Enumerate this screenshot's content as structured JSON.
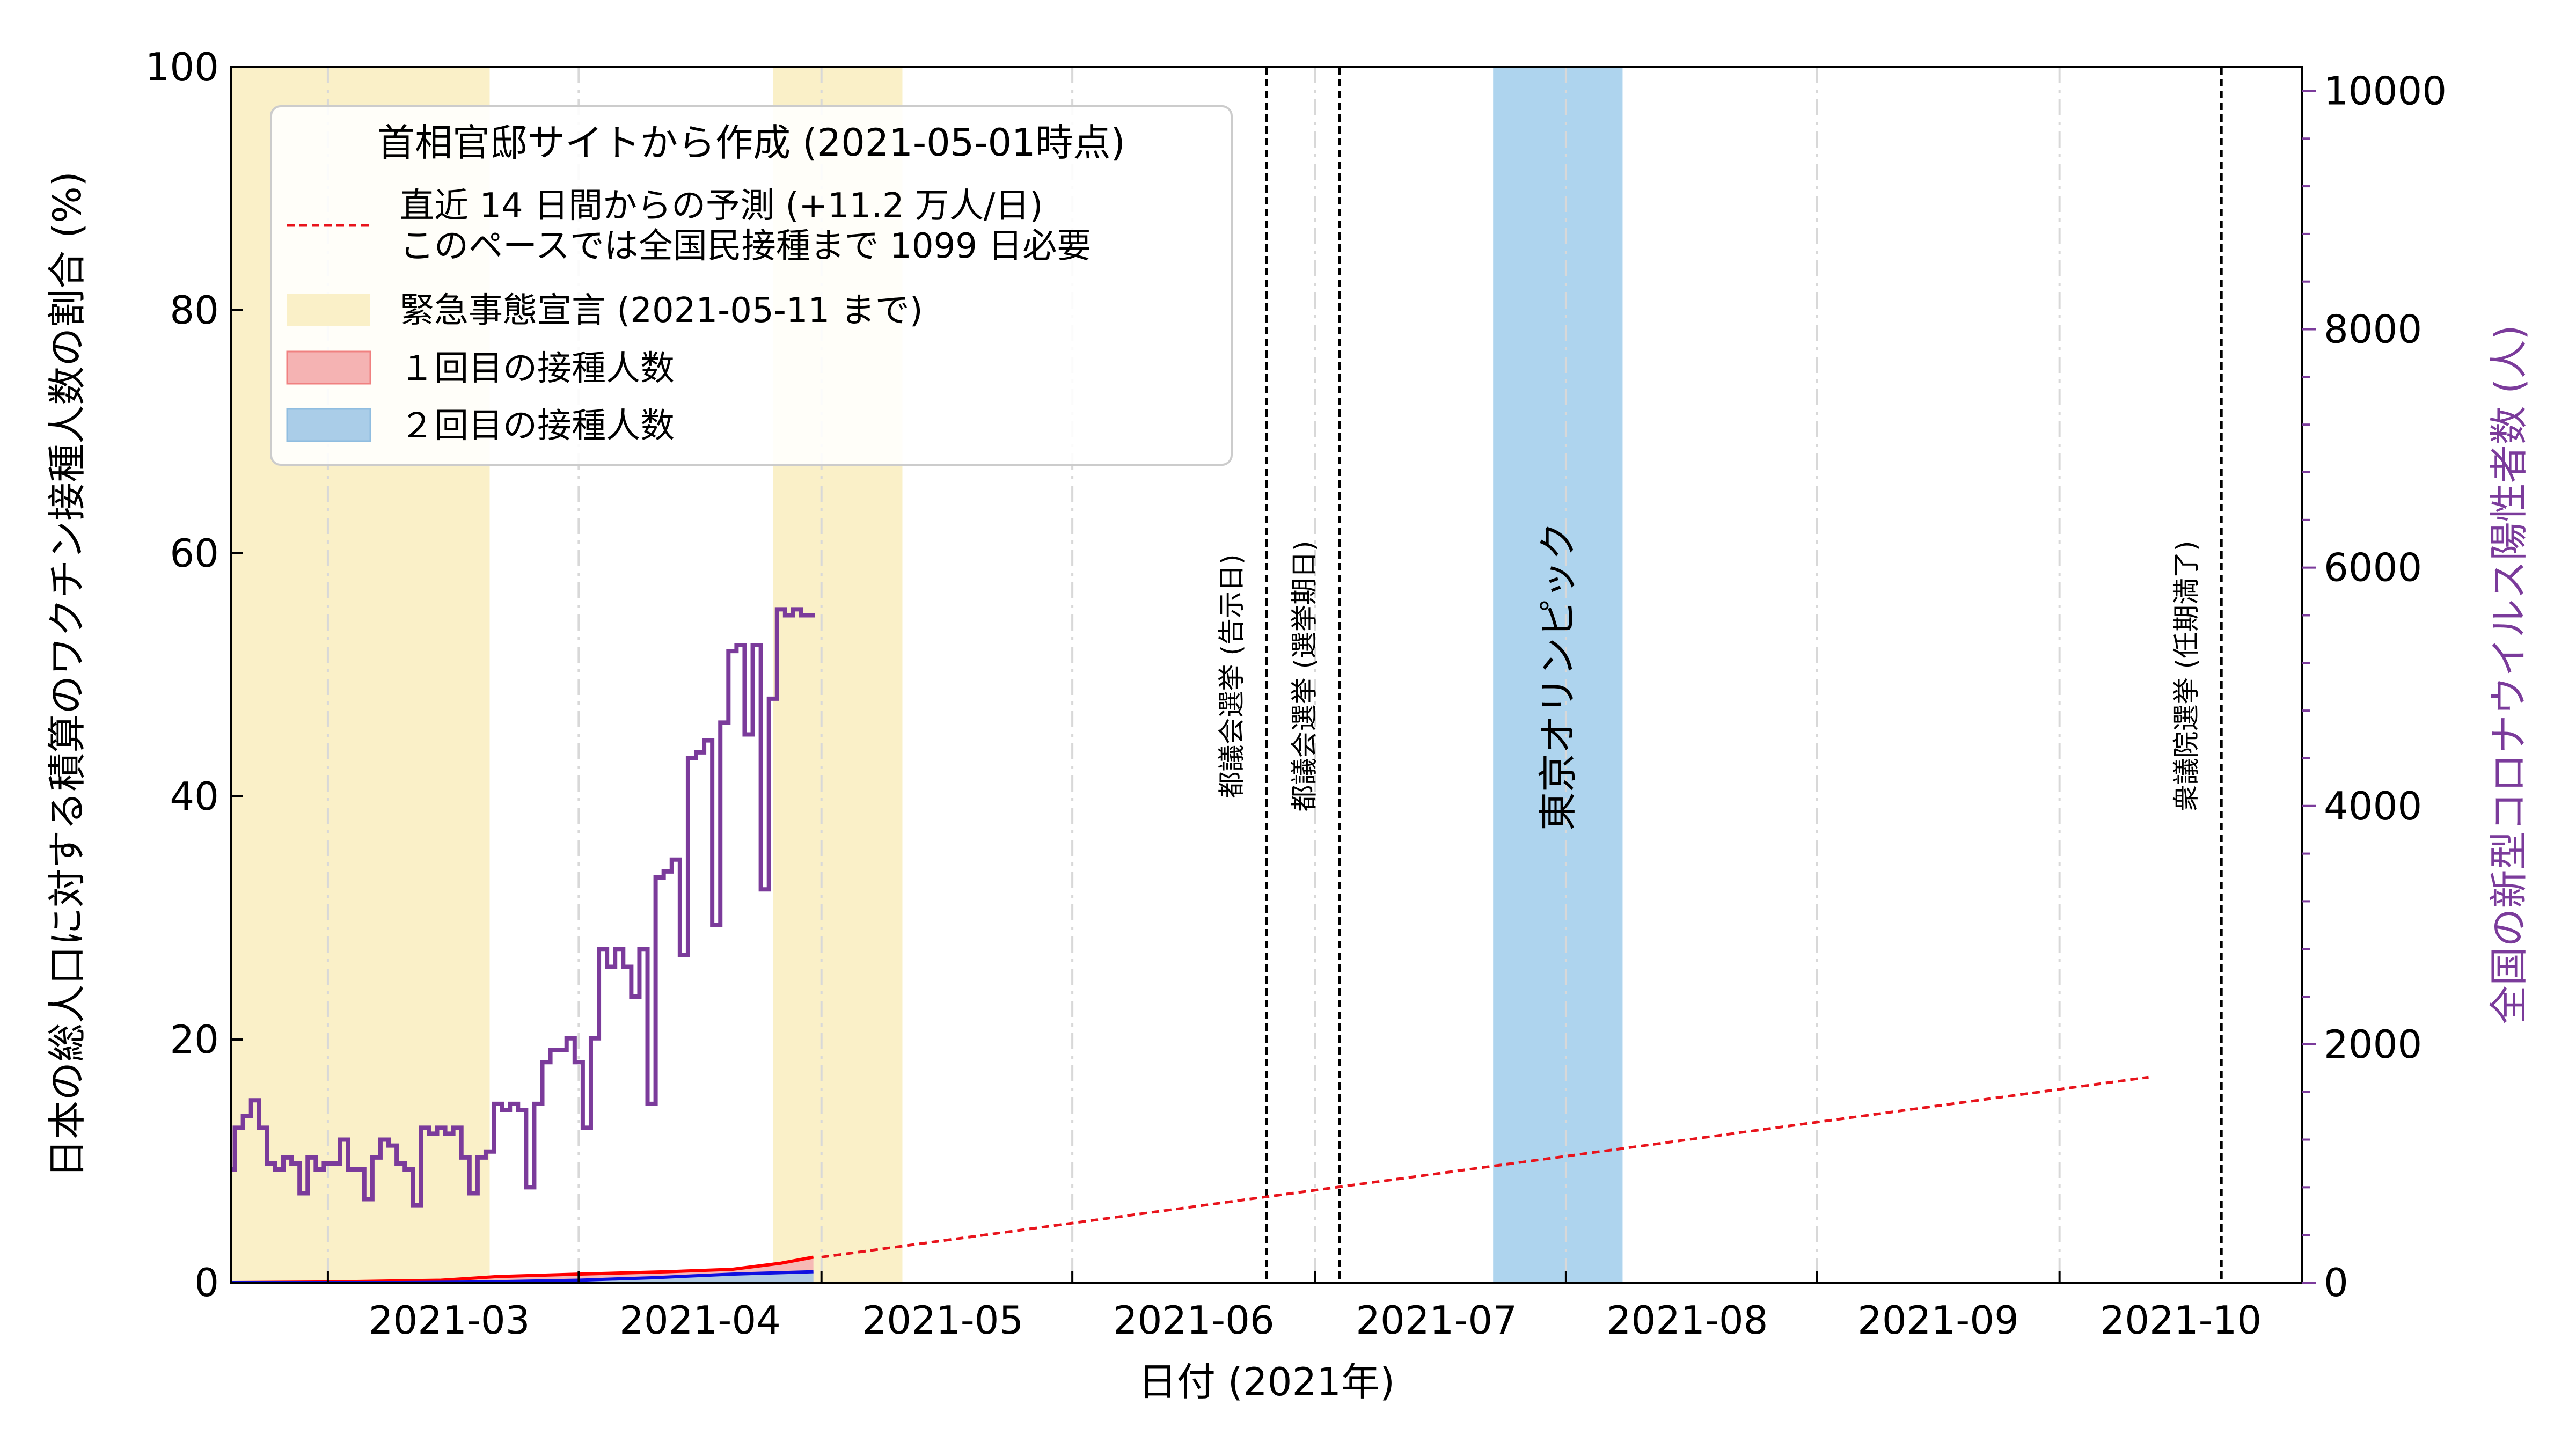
{
  "chart_data": {
    "type": "line",
    "title": "",
    "xlabel": "日付 (2021年)",
    "ylabel_left": "日本の総人口に対する積算のワクチン接種人数の割合 (%)",
    "ylabel_right": "全国の新型コロナウイルス陽性者数 (人)",
    "x_range": [
      "2021-02-17",
      "2021-10-31"
    ],
    "ylim_left": [
      0,
      100
    ],
    "ylim_right": [
      0,
      10200
    ],
    "x_ticks": [
      "2021-03",
      "2021-04",
      "2021-05",
      "2021-06",
      "2021-07",
      "2021-08",
      "2021-09",
      "2021-10"
    ],
    "x_tick_dates": [
      "2021-03-01",
      "2021-04-01",
      "2021-05-01",
      "2021-06-01",
      "2021-07-01",
      "2021-08-01",
      "2021-09-01",
      "2021-10-01"
    ],
    "y_ticks_left": [
      "0",
      "20",
      "40",
      "60",
      "80",
      "100"
    ],
    "y_ticks_right": [
      "0",
      "2000",
      "4000",
      "6000",
      "8000",
      "10000"
    ],
    "grid": "vertical dash-dot at month starts",
    "colors": {
      "emergency": "#faf0c8",
      "olympics": "#aed4ee",
      "forecast": "#e8141c",
      "dose1_line": "#ff0000",
      "dose1_fill": "#f5b3b3",
      "dose2_line": "#1010e0",
      "dose2_fill": "#aacde8",
      "cases": "#7b3b9b"
    },
    "shaded_regions": [
      {
        "label": "緊急事態宣言 (2021-05-11 まで)",
        "start": "2021-02-17",
        "end": "2021-03-21",
        "color": "#faf0c8"
      },
      {
        "label": "緊急事態宣言 (2021-05-11 まで)",
        "start": "2021-04-25",
        "end": "2021-05-11",
        "color": "#faf0c8"
      },
      {
        "label": "東京オリンピック",
        "start": "2021-07-23",
        "end": "2021-08-08",
        "color": "#aed4ee"
      }
    ],
    "events": [
      {
        "label": "都議会選挙 (告示日)",
        "date": "2021-06-25"
      },
      {
        "label": "都議会選挙 (選挙期日)",
        "date": "2021-07-04"
      },
      {
        "label": "衆議院選挙 (任期満了)",
        "date": "2021-10-21"
      }
    ],
    "olympics_label": "東京オリンピック",
    "forecast": {
      "name": "直近 14 日間からの予測 (+11.2 万人/日)",
      "note": "このペースでは全国民接種まで 1099 日必要",
      "x": [
        "2021-05-01",
        "2021-10-12"
      ],
      "y": [
        2.1,
        16.9
      ]
    },
    "series": [
      {
        "name": "１回目の接種人数",
        "axis": "left",
        "x": [
          "2021-02-17",
          "2021-03-01",
          "2021-03-15",
          "2021-03-22",
          "2021-04-01",
          "2021-04-12",
          "2021-04-20",
          "2021-04-26",
          "2021-04-30"
        ],
        "y": [
          0.0,
          0.05,
          0.2,
          0.5,
          0.7,
          0.9,
          1.1,
          1.6,
          2.1
        ]
      },
      {
        "name": "２回目の接種人数",
        "axis": "left",
        "x": [
          "2021-02-17",
          "2021-03-10",
          "2021-03-20",
          "2021-04-01",
          "2021-04-10",
          "2021-04-20",
          "2021-04-30"
        ],
        "y": [
          0.0,
          0.0,
          0.05,
          0.2,
          0.4,
          0.7,
          0.9
        ]
      },
      {
        "name": "全国の新型コロナウイルス陽性者数",
        "axis": "right",
        "x": [
          "2021-02-17",
          "2021-02-18",
          "2021-02-19",
          "2021-02-20",
          "2021-02-21",
          "2021-02-22",
          "2021-02-23",
          "2021-02-24",
          "2021-02-25",
          "2021-02-26",
          "2021-02-27",
          "2021-02-28",
          "2021-03-01",
          "2021-03-02",
          "2021-03-03",
          "2021-03-04",
          "2021-03-05",
          "2021-03-06",
          "2021-03-07",
          "2021-03-08",
          "2021-03-09",
          "2021-03-10",
          "2021-03-11",
          "2021-03-12",
          "2021-03-13",
          "2021-03-14",
          "2021-03-15",
          "2021-03-16",
          "2021-03-17",
          "2021-03-18",
          "2021-03-19",
          "2021-03-20",
          "2021-03-21",
          "2021-03-22",
          "2021-03-23",
          "2021-03-24",
          "2021-03-25",
          "2021-03-26",
          "2021-03-27",
          "2021-03-28",
          "2021-03-29",
          "2021-03-30",
          "2021-03-31",
          "2021-04-01",
          "2021-04-02",
          "2021-04-03",
          "2021-04-04",
          "2021-04-05",
          "2021-04-06",
          "2021-04-07",
          "2021-04-08",
          "2021-04-09",
          "2021-04-10",
          "2021-04-11",
          "2021-04-12",
          "2021-04-13",
          "2021-04-14",
          "2021-04-15",
          "2021-04-16",
          "2021-04-17",
          "2021-04-18",
          "2021-04-19",
          "2021-04-20",
          "2021-04-21",
          "2021-04-22",
          "2021-04-23",
          "2021-04-24",
          "2021-04-25",
          "2021-04-26",
          "2021-04-27",
          "2021-04-28",
          "2021-04-29",
          "2021-04-30"
        ],
        "y": [
          950,
          1300,
          1400,
          1530,
          1300,
          1000,
          950,
          1050,
          1000,
          750,
          1050,
          950,
          1000,
          1000,
          1200,
          950,
          950,
          700,
          1050,
          1200,
          1150,
          1000,
          950,
          650,
          1300,
          1250,
          1300,
          1250,
          1300,
          1050,
          750,
          1050,
          1100,
          1500,
          1450,
          1500,
          1450,
          800,
          1500,
          1850,
          1950,
          1950,
          2050,
          1850,
          1300,
          2050,
          2800,
          2650,
          2800,
          2650,
          2400,
          2800,
          1500,
          3400,
          3450,
          3550,
          2750,
          4400,
          4450,
          4550,
          3000,
          4700,
          5300,
          5350,
          4600,
          5350,
          3300,
          4900,
          5650,
          5600,
          5650,
          5600,
          5600
        ]
      }
    ],
    "legend": {
      "title": "首相官邸サイトから作成 (2021-05-01時点)",
      "placement": "top-left",
      "entries": [
        "直近 14 日間からの予測 (+11.2 万人/日)",
        "このペースでは全国民接種まで 1099 日必要",
        "緊急事態宣言 (2021-05-11 まで)",
        "１回目の接種人数",
        "２回目の接種人数"
      ]
    }
  }
}
